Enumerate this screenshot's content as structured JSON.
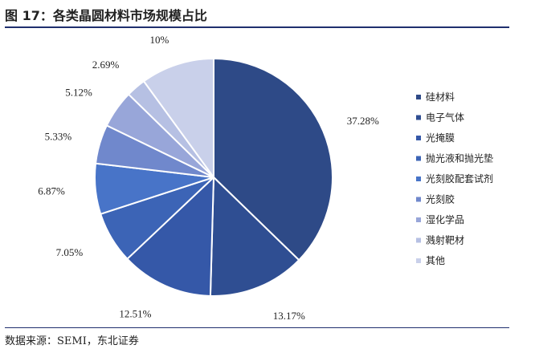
{
  "header": {
    "title": "图 17：各类晶圆材料市场规模占比"
  },
  "footer": {
    "source": "数据来源：SEMI，东北证券"
  },
  "chart_data": {
    "type": "pie",
    "title": "图 17：各类晶圆材料市场规模占比",
    "legend_position": "right",
    "start_angle_deg": 0,
    "direction": "clockwise",
    "categories": [
      "硅材料",
      "电子气体",
      "光掩膜",
      "抛光液和抛光垫",
      "光刻胶配套试剂",
      "光刻胶",
      "湿化学品",
      "溅射靶材",
      "其他"
    ],
    "values": [
      37.28,
      13.17,
      12.51,
      7.05,
      6.87,
      5.33,
      5.12,
      2.69,
      10
    ],
    "labels": [
      "37.28%",
      "13.17%",
      "12.51%",
      "7.05%",
      "6.87%",
      "5.33%",
      "5.12%",
      "2.69%",
      "10%"
    ],
    "colors": [
      "#2e4a87",
      "#2f4e92",
      "#3558a8",
      "#3c64b6",
      "#4874c8",
      "#7088cc",
      "#98a6d9",
      "#b6c0e3",
      "#c9d0ea"
    ]
  }
}
